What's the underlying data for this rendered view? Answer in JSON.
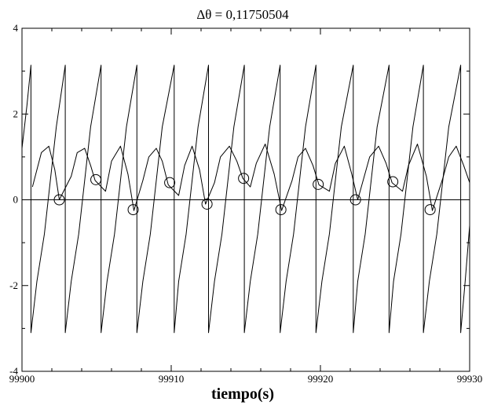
{
  "chart_data": {
    "type": "line",
    "title": "Δθ = 0,11750504",
    "xlabel": "tiempo(s)",
    "ylabel": "",
    "xlim": [
      99900,
      99930
    ],
    "ylim": [
      -4,
      4
    ],
    "x_ticks": [
      99900,
      99910,
      99920,
      99930
    ],
    "x_tick_labels": [
      "99900",
      "99910",
      "99920",
      "99930"
    ],
    "y_ticks": [
      -4,
      -2,
      0,
      2,
      4
    ],
    "y_tick_labels": [
      "-4",
      "-2",
      "0",
      "2",
      "4"
    ],
    "grid": false,
    "legend": "none",
    "horizontal_reference_line": 0,
    "series": [
      {
        "kind": "sawtooth",
        "x": [
          99900.0,
          99900.33,
          99900.6,
          99900.6,
          99901.0,
          99901.5,
          99902.3,
          99902.9,
          99902.9,
          99903.3,
          99903.8,
          99904.6,
          99905.3,
          99905.3,
          99905.7,
          99906.2,
          99907.0,
          99907.7,
          99907.7,
          99908.1,
          99908.6,
          99909.4,
          99910.2,
          99910.2,
          99910.5,
          99911.0,
          99911.8,
          99912.5,
          99912.5,
          99912.9,
          99913.4,
          99914.2,
          99914.9,
          99914.9,
          99915.3,
          99915.8,
          99916.6,
          99917.3,
          99917.3,
          99917.7,
          99918.2,
          99919.0,
          99919.7,
          99919.7,
          99920.1,
          99920.6,
          99921.4,
          99922.2,
          99922.2,
          99922.5,
          99923.0,
          99923.8,
          99924.6,
          99924.6,
          99924.9,
          99925.4,
          99926.2,
          99926.9,
          99926.9,
          99927.3,
          99927.8,
          99928.6,
          99929.4,
          99929.4,
          99929.7,
          99930.0
        ],
        "y": [
          1.2,
          2.2,
          3.14,
          -3.1,
          -1.9,
          -0.8,
          1.7,
          3.14,
          -3.1,
          -1.9,
          -0.8,
          1.7,
          3.14,
          -3.1,
          -1.9,
          -0.8,
          1.7,
          3.14,
          -3.1,
          -1.9,
          -0.8,
          1.7,
          3.14,
          -3.1,
          -1.9,
          -0.8,
          1.7,
          3.14,
          -3.1,
          -1.9,
          -0.8,
          1.7,
          3.14,
          -3.1,
          -1.9,
          -0.8,
          1.7,
          3.14,
          -3.1,
          -1.9,
          -0.8,
          1.7,
          3.14,
          -3.1,
          -1.9,
          -0.8,
          1.7,
          3.14,
          -3.1,
          -1.9,
          -0.8,
          1.7,
          3.14,
          -3.1,
          -1.9,
          -0.8,
          1.7,
          3.14,
          -3.1,
          -1.9,
          -0.8,
          1.7,
          3.14,
          -3.1,
          -1.9,
          -0.6
        ]
      },
      {
        "kind": "humps",
        "x": [
          99900.7,
          99901.3,
          99901.8,
          99902.2,
          99902.5,
          99903.3,
          99903.7,
          99904.2,
          99904.6,
          99904.9,
          99905.6,
          99906.0,
          99906.6,
          99907.1,
          99907.5,
          99908.1,
          99908.5,
          99909.0,
          99909.4,
          99909.8,
          99910.5,
          99910.9,
          99911.4,
          99911.9,
          99912.3,
          99912.9,
          99913.3,
          99913.9,
          99914.4,
          99914.8,
          99915.3,
          99915.7,
          99916.3,
          99916.9,
          99917.4,
          99918.1,
          99918.5,
          99919.0,
          99919.5,
          99919.9,
          99920.6,
          99921.0,
          99921.6,
          99922.1,
          99922.5,
          99922.9,
          99923.3,
          99923.9,
          99924.4,
          99924.8,
          99925.5,
          99925.9,
          99926.5,
          99927.1,
          99927.5,
          99928.2,
          99928.6,
          99929.1,
          99929.6,
          99930.0
        ],
        "y": [
          0.3,
          1.1,
          1.25,
          0.7,
          0.0,
          0.55,
          1.1,
          1.2,
          0.8,
          0.45,
          0.2,
          0.9,
          1.25,
          0.6,
          -0.25,
          0.45,
          1.0,
          1.2,
          0.9,
          0.35,
          0.1,
          0.8,
          1.25,
          0.7,
          -0.1,
          0.4,
          1.0,
          1.25,
          0.9,
          0.5,
          0.3,
          0.85,
          1.3,
          0.6,
          -0.25,
          0.45,
          1.0,
          1.2,
          0.8,
          0.35,
          0.2,
          0.85,
          1.25,
          0.6,
          0.0,
          0.5,
          1.0,
          1.25,
          0.85,
          0.4,
          0.2,
          0.8,
          1.3,
          0.55,
          -0.25,
          0.5,
          1.0,
          1.25,
          0.8,
          0.4
        ]
      }
    ],
    "markers": {
      "shape": "open-circle",
      "x": [
        99902.5,
        99904.95,
        99907.45,
        99909.9,
        99912.4,
        99914.85,
        99917.35,
        99919.85,
        99922.35,
        99924.85,
        99927.35
      ],
      "y": [
        0.0,
        0.47,
        -0.23,
        0.4,
        -0.1,
        0.5,
        -0.23,
        0.36,
        0.0,
        0.42,
        -0.23
      ]
    },
    "colors": {
      "line": "#000000",
      "background": "#ffffff"
    }
  }
}
